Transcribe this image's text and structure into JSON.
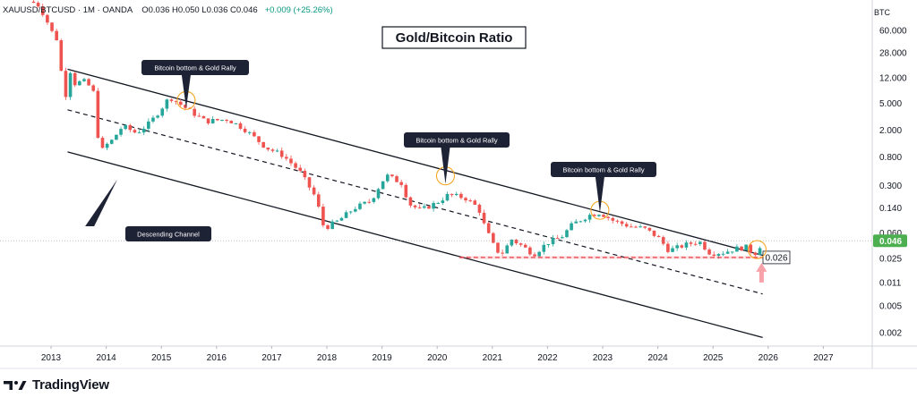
{
  "header": {
    "symbol": "XAUUSD/BTCUSD",
    "interval": "1M",
    "broker": "OANDA",
    "ohlc": "O0.036 H0.050 L0.036 C0.046",
    "change": "+0.009 (+25.26%)"
  },
  "axis_unit": "BTC",
  "brand": {
    "name": "TradingView"
  },
  "colors": {
    "up": "#26a69a",
    "down": "#ef5350",
    "support": "#f23645",
    "last_price_bg": "#4caf50",
    "annotation_bg": "#1e2235",
    "circle": "#f5a623"
  },
  "chart_data": {
    "type": "candlestick",
    "title": "Gold/Bitcoin Ratio",
    "y_scale": "log",
    "ylim": [
      0.0013,
      180
    ],
    "xlim": [
      2012.6,
      2027.5
    ],
    "y_ticks": [
      "60.000",
      "28.000",
      "12.000",
      "5.000",
      "2.000",
      "0.800",
      "0.300",
      "0.140",
      "0.060",
      "0.025",
      "0.011",
      "0.005",
      "0.002"
    ],
    "x_ticks": [
      "2013",
      "2014",
      "2015",
      "2016",
      "2017",
      "2018",
      "2019",
      "2020",
      "2021",
      "2022",
      "2023",
      "2024",
      "2025",
      "2026",
      "2027"
    ],
    "last_price": "0.046",
    "support_level": "0.026",
    "annotations": [
      {
        "label": "Bitcoin bottom & Gold Rally",
        "at": [
          2015.45,
          4.5
        ]
      },
      {
        "label": "Bitcoin bottom & Gold Rally",
        "at": [
          2020.15,
          0.38
        ]
      },
      {
        "label": "Bitcoin bottom & Gold Rally",
        "at": [
          2022.95,
          0.12
        ]
      },
      {
        "label": "Descending Channel",
        "at": [
          2013.7,
          0.4
        ]
      }
    ],
    "channel": {
      "upper": [
        [
          2013.3,
          16
        ],
        [
          2025.9,
          0.028
        ]
      ],
      "middle": [
        [
          2013.3,
          4.0
        ],
        [
          2025.9,
          0.0075
        ]
      ],
      "lower": [
        [
          2013.3,
          0.95
        ],
        [
          2025.9,
          0.0017
        ]
      ]
    },
    "anchors": [
      [
        2012.6,
        160
      ],
      [
        2012.75,
        150
      ],
      [
        2012.88,
        100
      ],
      [
        2013.0,
        60
      ],
      [
        2013.1,
        45
      ],
      [
        2013.2,
        12
      ],
      [
        2013.28,
        6
      ],
      [
        2013.35,
        15
      ],
      [
        2013.45,
        9
      ],
      [
        2013.55,
        11
      ],
      [
        2013.65,
        10
      ],
      [
        2013.78,
        7
      ],
      [
        2013.88,
        0.9
      ],
      [
        2014.0,
        1.2
      ],
      [
        2014.1,
        1.4
      ],
      [
        2014.3,
        2.3
      ],
      [
        2014.55,
        1.8
      ],
      [
        2014.8,
        2.6
      ],
      [
        2015.0,
        4.2
      ],
      [
        2015.15,
        6.2
      ],
      [
        2015.45,
        4.2
      ],
      [
        2015.8,
        2.7
      ],
      [
        2016.2,
        2.9
      ],
      [
        2016.5,
        2.1
      ],
      [
        2016.9,
        1.1
      ],
      [
        2017.2,
        0.85
      ],
      [
        2017.5,
        0.5
      ],
      [
        2017.8,
        0.2
      ],
      [
        2017.95,
        0.07
      ],
      [
        2018.2,
        0.09
      ],
      [
        2018.5,
        0.14
      ],
      [
        2018.8,
        0.18
      ],
      [
        2019.0,
        0.35
      ],
      [
        2019.1,
        0.42
      ],
      [
        2019.35,
        0.33
      ],
      [
        2019.5,
        0.16
      ],
      [
        2019.7,
        0.13
      ],
      [
        2020.0,
        0.17
      ],
      [
        2020.2,
        0.22
      ],
      [
        2020.5,
        0.2
      ],
      [
        2020.75,
        0.14
      ],
      [
        2020.85,
        0.08
      ],
      [
        2021.0,
        0.042
      ],
      [
        2021.15,
        0.028
      ],
      [
        2021.35,
        0.048
      ],
      [
        2021.55,
        0.038
      ],
      [
        2021.75,
        0.029
      ],
      [
        2022.0,
        0.043
      ],
      [
        2022.25,
        0.052
      ],
      [
        2022.45,
        0.08
      ],
      [
        2022.75,
        0.11
      ],
      [
        2022.95,
        0.12
      ],
      [
        2023.2,
        0.09
      ],
      [
        2023.5,
        0.075
      ],
      [
        2023.75,
        0.07
      ],
      [
        2024.0,
        0.052
      ],
      [
        2024.2,
        0.033
      ],
      [
        2024.5,
        0.04
      ],
      [
        2024.75,
        0.045
      ],
      [
        2024.95,
        0.03
      ],
      [
        2025.2,
        0.031
      ],
      [
        2025.4,
        0.035
      ],
      [
        2025.6,
        0.037
      ],
      [
        2025.75,
        0.029
      ],
      [
        2025.83,
        0.036
      ],
      [
        2025.9,
        0.046
      ]
    ]
  }
}
